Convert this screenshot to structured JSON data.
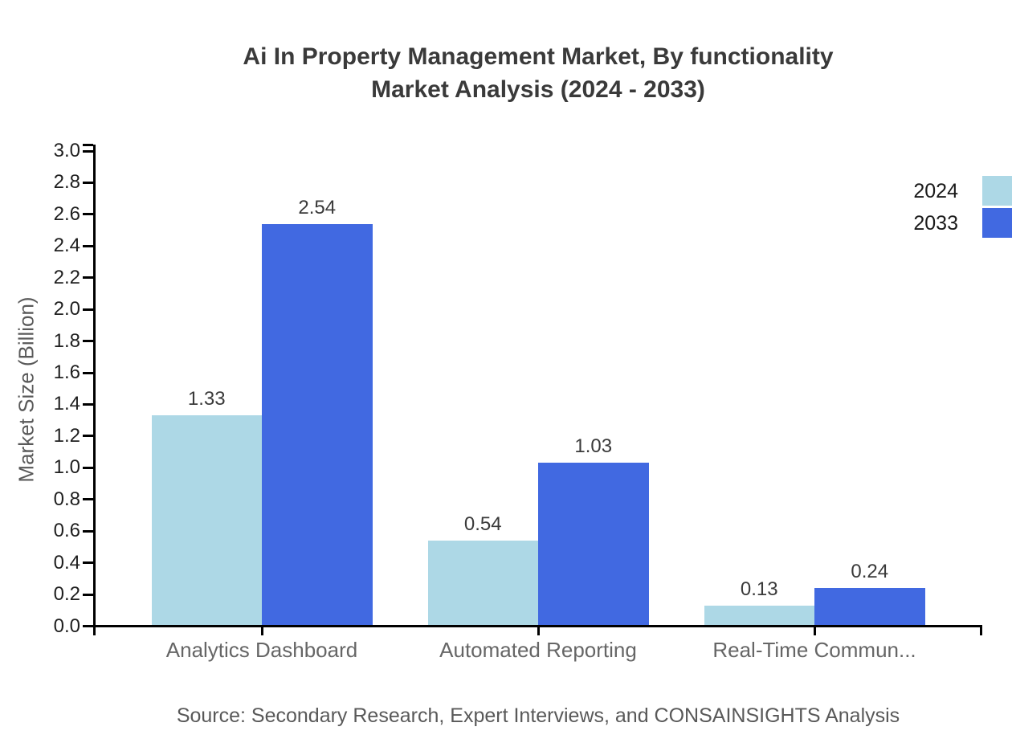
{
  "title": {
    "line1": "Ai In Property Management Market, By functionality",
    "line2": "Market Analysis (2024 - 2033)"
  },
  "source": "Source: Secondary Research, Expert Interviews, and CONSAINSIGHTS Analysis",
  "chart_data": {
    "type": "bar",
    "title": "Ai In Property Management Market, By functionality Market Analysis (2024 - 2033)",
    "categories": [
      "Analytics Dashboard",
      "Automated Reporting",
      "Real-Time Commun..."
    ],
    "series": [
      {
        "name": "2024",
        "color": "#ADD8E6",
        "values": [
          1.33,
          0.54,
          0.13
        ]
      },
      {
        "name": "2033",
        "color": "#4169E1",
        "values": [
          2.54,
          1.03,
          0.24
        ]
      }
    ],
    "xlabel": "",
    "ylabel": "Market Size (Billion)",
    "ylim": [
      0.0,
      3.0
    ],
    "ytick_step": 0.2,
    "ytick_format_decimals": 1,
    "value_labels": true,
    "value_label_decimals": 2,
    "grid": false,
    "legend_position": "top-right",
    "axis_color": "#000000",
    "title_color": "#3a3a3a",
    "label_color": "#666666"
  }
}
